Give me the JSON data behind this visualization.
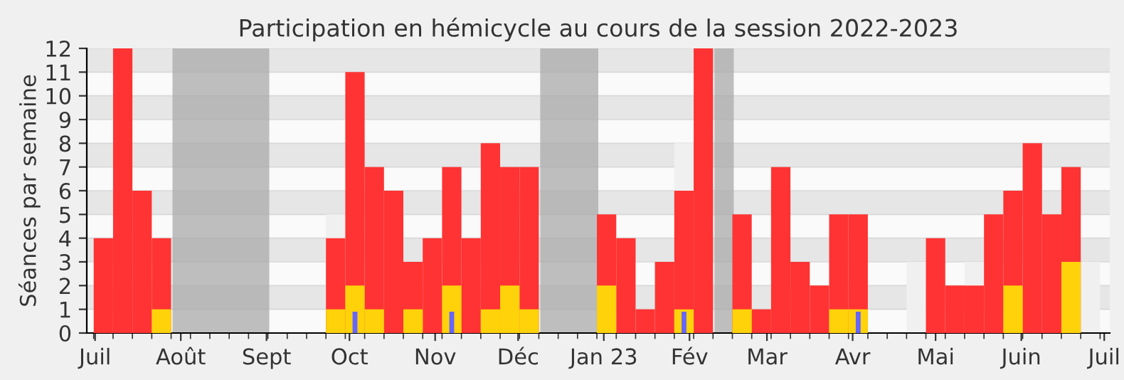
{
  "chart_data": {
    "type": "bar",
    "title": "Participation en hémicycle au cours de la session 2022-2023",
    "ylabel": "Séances par semaine",
    "x": [
      "2022-07-04",
      "2022-07-11",
      "2022-07-18",
      "2022-07-25",
      "2022-08-01",
      "2022-08-08",
      "2022-08-15",
      "2022-08-22",
      "2022-08-29",
      "2022-09-05",
      "2022-09-12",
      "2022-09-19",
      "2022-09-26",
      "2022-10-03",
      "2022-10-10",
      "2022-10-17",
      "2022-10-24",
      "2022-10-31",
      "2022-11-07",
      "2022-11-14",
      "2022-11-21",
      "2022-11-28",
      "2022-12-05",
      "2022-12-12",
      "2022-12-19",
      "2022-12-26",
      "2023-01-02",
      "2023-01-09",
      "2023-01-16",
      "2023-01-23",
      "2023-01-30",
      "2023-02-06",
      "2023-02-13",
      "2023-02-20",
      "2023-02-27",
      "2023-03-06",
      "2023-03-13",
      "2023-03-20",
      "2023-03-27",
      "2023-04-03",
      "2023-04-10",
      "2023-04-17",
      "2023-04-24",
      "2023-05-01",
      "2023-05-08",
      "2023-05-15",
      "2023-05-22",
      "2023-05-29",
      "2023-06-05",
      "2023-06-12",
      "2023-06-19",
      "2023-06-26"
    ],
    "series": [
      {
        "color": "#f0f0f0",
        "values": [
          null,
          null,
          null,
          null,
          null,
          null,
          null,
          null,
          null,
          null,
          null,
          null,
          5,
          null,
          null,
          null,
          null,
          null,
          null,
          null,
          null,
          null,
          null,
          null,
          null,
          null,
          null,
          null,
          null,
          null,
          8,
          null,
          null,
          null,
          null,
          null,
          null,
          null,
          null,
          null,
          null,
          null,
          3,
          null,
          null,
          3,
          null,
          null,
          null,
          null,
          null,
          3
        ]
      },
      {
        "color": "#ff3333",
        "values": [
          4,
          12,
          6,
          4,
          0,
          0,
          0,
          0,
          0,
          0,
          0,
          0,
          4,
          11,
          7,
          6,
          3,
          4,
          7,
          4,
          8,
          7,
          7,
          0,
          0,
          0,
          5,
          4,
          1,
          3,
          6,
          12,
          0,
          5,
          1,
          7,
          3,
          2,
          5,
          5,
          0,
          0,
          0,
          4,
          2,
          2,
          5,
          6,
          8,
          5,
          7,
          0
        ]
      },
      {
        "color": "#ffd20a",
        "values": [
          0,
          0,
          0,
          1,
          0,
          0,
          0,
          0,
          0,
          0,
          0,
          0,
          1,
          2,
          1,
          0,
          1,
          0,
          2,
          0,
          1,
          2,
          1,
          0,
          0,
          0,
          2,
          0,
          0,
          0,
          1,
          0,
          0,
          1,
          0,
          0,
          0,
          0,
          1,
          1,
          0,
          0,
          0,
          0,
          0,
          0,
          0,
          2,
          0,
          0,
          3,
          0
        ]
      },
      {
        "color": "#6666ff",
        "values": [
          null,
          null,
          null,
          null,
          null,
          null,
          null,
          null,
          null,
          null,
          null,
          null,
          null,
          0.9,
          null,
          null,
          null,
          null,
          0.9,
          null,
          null,
          null,
          null,
          null,
          null,
          null,
          null,
          null,
          null,
          null,
          0.9,
          null,
          null,
          null,
          null,
          null,
          null,
          null,
          null,
          0.9,
          null,
          null,
          null,
          null,
          null,
          null,
          null,
          null,
          null,
          null,
          null,
          null
        ]
      }
    ],
    "bands": [
      {
        "axis": "x",
        "from": "2022-07-29",
        "to": "2022-09-02",
        "color": "#aaaaaa"
      },
      {
        "axis": "x",
        "from": "2022-12-09",
        "to": "2022-12-30",
        "color": "#aaaaaa"
      },
      {
        "axis": "x",
        "from": "2023-02-10",
        "to": "2023-02-17",
        "color": "#aaaaaa"
      }
    ],
    "xlim": [
      "2022-06-28",
      "2023-07-03"
    ],
    "ylim": [
      0,
      12
    ],
    "yticks": [
      0,
      1,
      2,
      3,
      4,
      5,
      6,
      7,
      8,
      9,
      10,
      11,
      12
    ],
    "xticks": [
      {
        "value": "2022-07-01",
        "label": "Juil"
      },
      {
        "value": "2022-08-01",
        "label": "Août"
      },
      {
        "value": "2022-09-01",
        "label": "Sept"
      },
      {
        "value": "2022-10-01",
        "label": "Oct"
      },
      {
        "value": "2022-11-01",
        "label": "Nov"
      },
      {
        "value": "2022-12-01",
        "label": "Déc"
      },
      {
        "value": "2023-01-01",
        "label": "Jan 23"
      },
      {
        "value": "2023-02-01",
        "label": "Fév"
      },
      {
        "value": "2023-03-01",
        "label": "Mar"
      },
      {
        "value": "2023-04-01",
        "label": "Avr"
      },
      {
        "value": "2023-05-01",
        "label": "Mai"
      },
      {
        "value": "2023-06-01",
        "label": "Juin"
      },
      {
        "value": "2023-07-01",
        "label": "Juil"
      }
    ],
    "grid": "y",
    "legend": false
  }
}
